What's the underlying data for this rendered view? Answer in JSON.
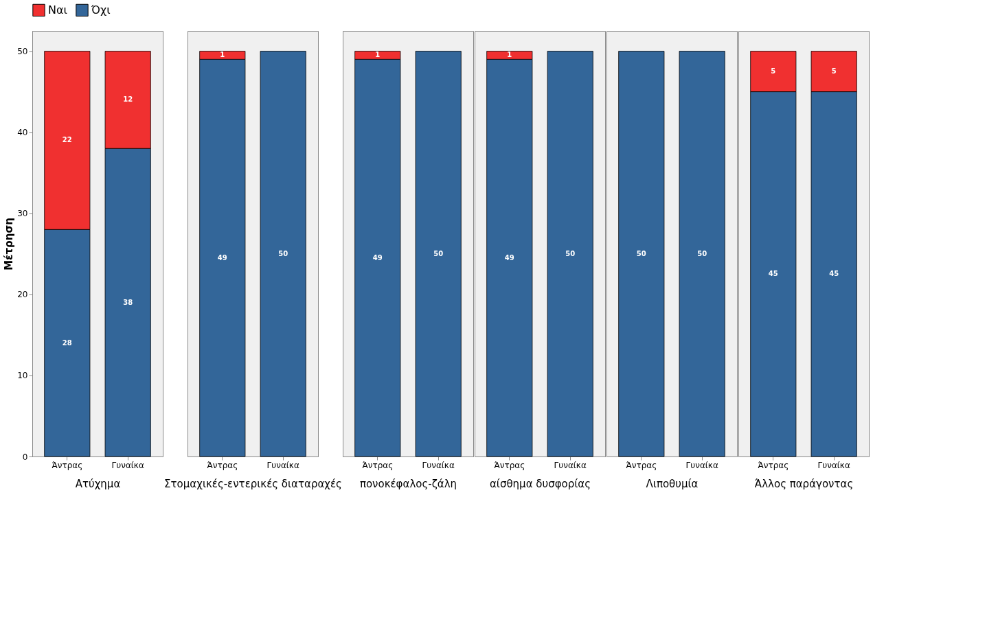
{
  "chart_data": [
    {
      "type": "bar",
      "stacked": true,
      "xlabel": "Ατύχημα",
      "ylabel": "Μέτρηση",
      "categories": [
        "Άντρας",
        "Γυναίκα"
      ],
      "ylim": [
        0,
        52.5
      ],
      "yticks": [
        0,
        10,
        20,
        30,
        40,
        50
      ],
      "grid": false,
      "legend": "top",
      "data_labels": true,
      "series": [
        {
          "name": "Όχι",
          "color": "#336699",
          "values": [
            28,
            38
          ]
        },
        {
          "name": "Ναι",
          "color": "#f03030",
          "values": [
            22,
            12
          ]
        }
      ]
    },
    {
      "type": "bar",
      "stacked": true,
      "xlabel": "Στομαχικές-εντερικές διαταραχές",
      "categories": [
        "Άντρας",
        "Γυναίκα"
      ],
      "ylim": [
        0,
        52.5
      ],
      "tick_labels": "x",
      "grid": false,
      "data_labels": true,
      "series": [
        {
          "name": "Όχι",
          "color": "#336699",
          "values": [
            49,
            50
          ]
        },
        {
          "name": "Ναι",
          "color": "#f03030",
          "values": [
            1,
            null
          ]
        }
      ]
    },
    {
      "type": "bar",
      "stacked": true,
      "xlabel": "πονοκέφαλος-ζάλη",
      "categories": [
        "Άντρας",
        "Γυναίκα"
      ],
      "ylim": [
        0,
        52.5
      ],
      "tick_labels": "x",
      "grid": false,
      "data_labels": true,
      "series": [
        {
          "name": "Όχι",
          "color": "#336699",
          "values": [
            49,
            50
          ]
        },
        {
          "name": "Ναι",
          "color": "#f03030",
          "values": [
            1,
            null
          ]
        }
      ]
    },
    {
      "type": "bar",
      "stacked": true,
      "xlabel": "αίσθημα δυσφορίας",
      "categories": [
        "Άντρας",
        "Γυναίκα"
      ],
      "ylim": [
        0,
        52.5
      ],
      "tick_labels": "x",
      "grid": false,
      "data_labels": true,
      "series": [
        {
          "name": "Όχι",
          "color": "#336699",
          "values": [
            49,
            50
          ]
        },
        {
          "name": "Ναι",
          "color": "#f03030",
          "values": [
            1,
            null
          ]
        }
      ]
    },
    {
      "type": "bar",
      "stacked": true,
      "xlabel": "Λιποθυμία",
      "categories": [
        "Άντρας",
        "Γυναίκα"
      ],
      "ylim": [
        0,
        52.5
      ],
      "tick_labels": "x",
      "grid": false,
      "data_labels": true,
      "series": [
        {
          "name": "Όχι",
          "color": "#336699",
          "values": [
            50,
            50
          ]
        },
        {
          "name": "Ναι",
          "values": [
            null,
            null
          ]
        }
      ]
    },
    {
      "type": "bar",
      "stacked": true,
      "xlabel": "Άλλος παράγοντας",
      "categories": [
        "Άντρας",
        "Γυναίκα"
      ],
      "ylim": [
        0,
        52.5
      ],
      "tick_labels": "x",
      "grid": false,
      "data_labels": true,
      "series": [
        {
          "name": "Όχι",
          "color": "#336699",
          "values": [
            45,
            45
          ]
        },
        {
          "name": "Ναι",
          "color": "#f03030",
          "values": [
            5,
            5
          ]
        }
      ]
    }
  ]
}
